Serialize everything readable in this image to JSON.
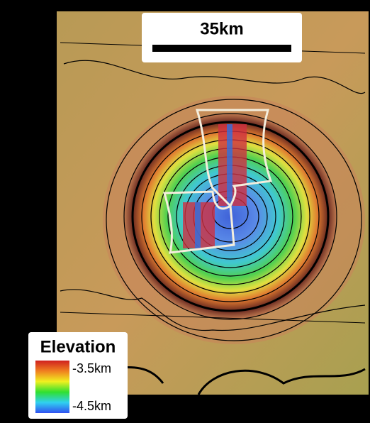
{
  "scale_bar": {
    "label": "35km"
  },
  "legend": {
    "title": "Elevation",
    "max_label": "-3.5km",
    "min_label": "-4.5km"
  }
}
